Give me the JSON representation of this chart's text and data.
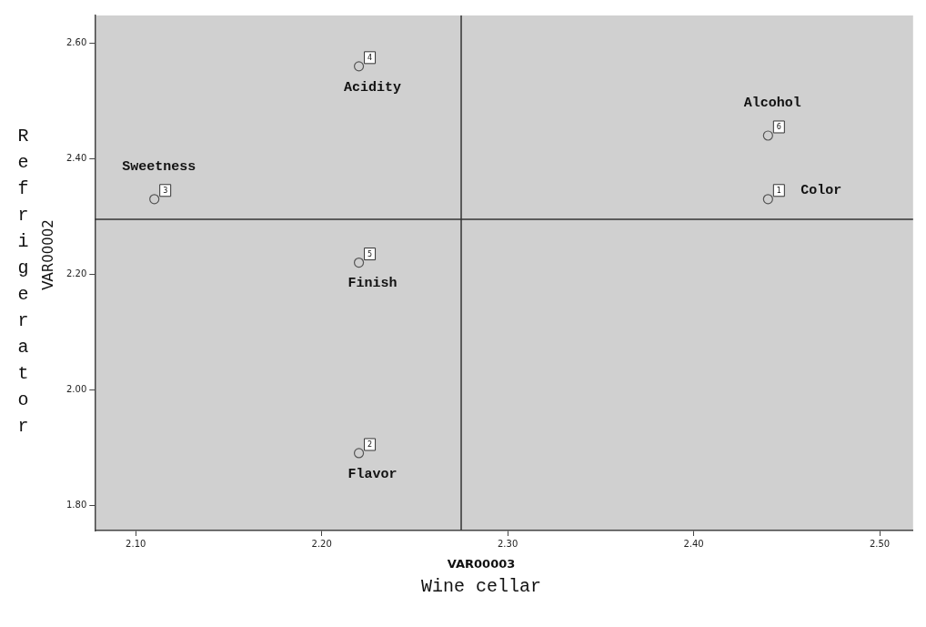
{
  "chart_data": {
    "type": "scatter",
    "xlabel": "VAR00003\nWine cellar",
    "ylabel": "VAR00002\nRefrigerator",
    "series": [
      {
        "name": "Color",
        "color": "#555555",
        "x": [
          2.44
        ],
        "values": [
          2.33
        ]
      },
      {
        "name": "Flavor",
        "color": "#555555",
        "x": [
          2.22
        ],
        "values": [
          1.89
        ]
      },
      {
        "name": "Sweetness",
        "color": "#555555",
        "x": [
          2.11
        ],
        "values": [
          2.33
        ]
      },
      {
        "name": "Acidity",
        "color": "#555555",
        "x": [
          2.22
        ],
        "values": [
          2.56
        ]
      },
      {
        "name": "Finish",
        "color": "#555555",
        "x": [
          2.22
        ],
        "values": [
          2.22
        ]
      },
      {
        "name": "Alcohol",
        "color": "#555555",
        "x": [
          2.44
        ],
        "values": [
          2.44
        ]
      }
    ],
    "marker": "circle",
    "grid": false,
    "legend": false,
    "xlim": [
      2.078,
      2.518
    ],
    "ylim": [
      1.756,
      2.648
    ],
    "xticks": [
      {
        "value": 2.1,
        "label": "2.10"
      },
      {
        "value": 2.2,
        "label": "2.20"
      },
      {
        "value": 2.3,
        "label": "2.30"
      },
      {
        "value": 2.4,
        "label": "2.40"
      },
      {
        "value": 2.5,
        "label": "2.50"
      }
    ],
    "yticks": [
      {
        "value": 1.8,
        "label": "1.80"
      },
      {
        "value": 2.0,
        "label": "2.00"
      },
      {
        "value": 2.2,
        "label": "2.20"
      },
      {
        "value": 2.4,
        "label": "2.40"
      },
      {
        "value": 2.6,
        "label": "2.60"
      }
    ],
    "ref_lines": [
      {
        "axis": "x",
        "value": 2.275,
        "color": "#333333"
      },
      {
        "axis": "y",
        "value": 2.295,
        "color": "#333333"
      }
    ],
    "annotations": [
      {
        "text": "1",
        "x": 2.44,
        "y": 2.33
      },
      {
        "text": "2",
        "x": 2.22,
        "y": 1.89
      },
      {
        "text": "3",
        "x": 2.11,
        "y": 2.33
      },
      {
        "text": "4",
        "x": 2.22,
        "y": 2.56
      },
      {
        "text": "5",
        "x": 2.22,
        "y": 2.22
      },
      {
        "text": "6",
        "x": 2.44,
        "y": 2.44
      }
    ]
  }
}
